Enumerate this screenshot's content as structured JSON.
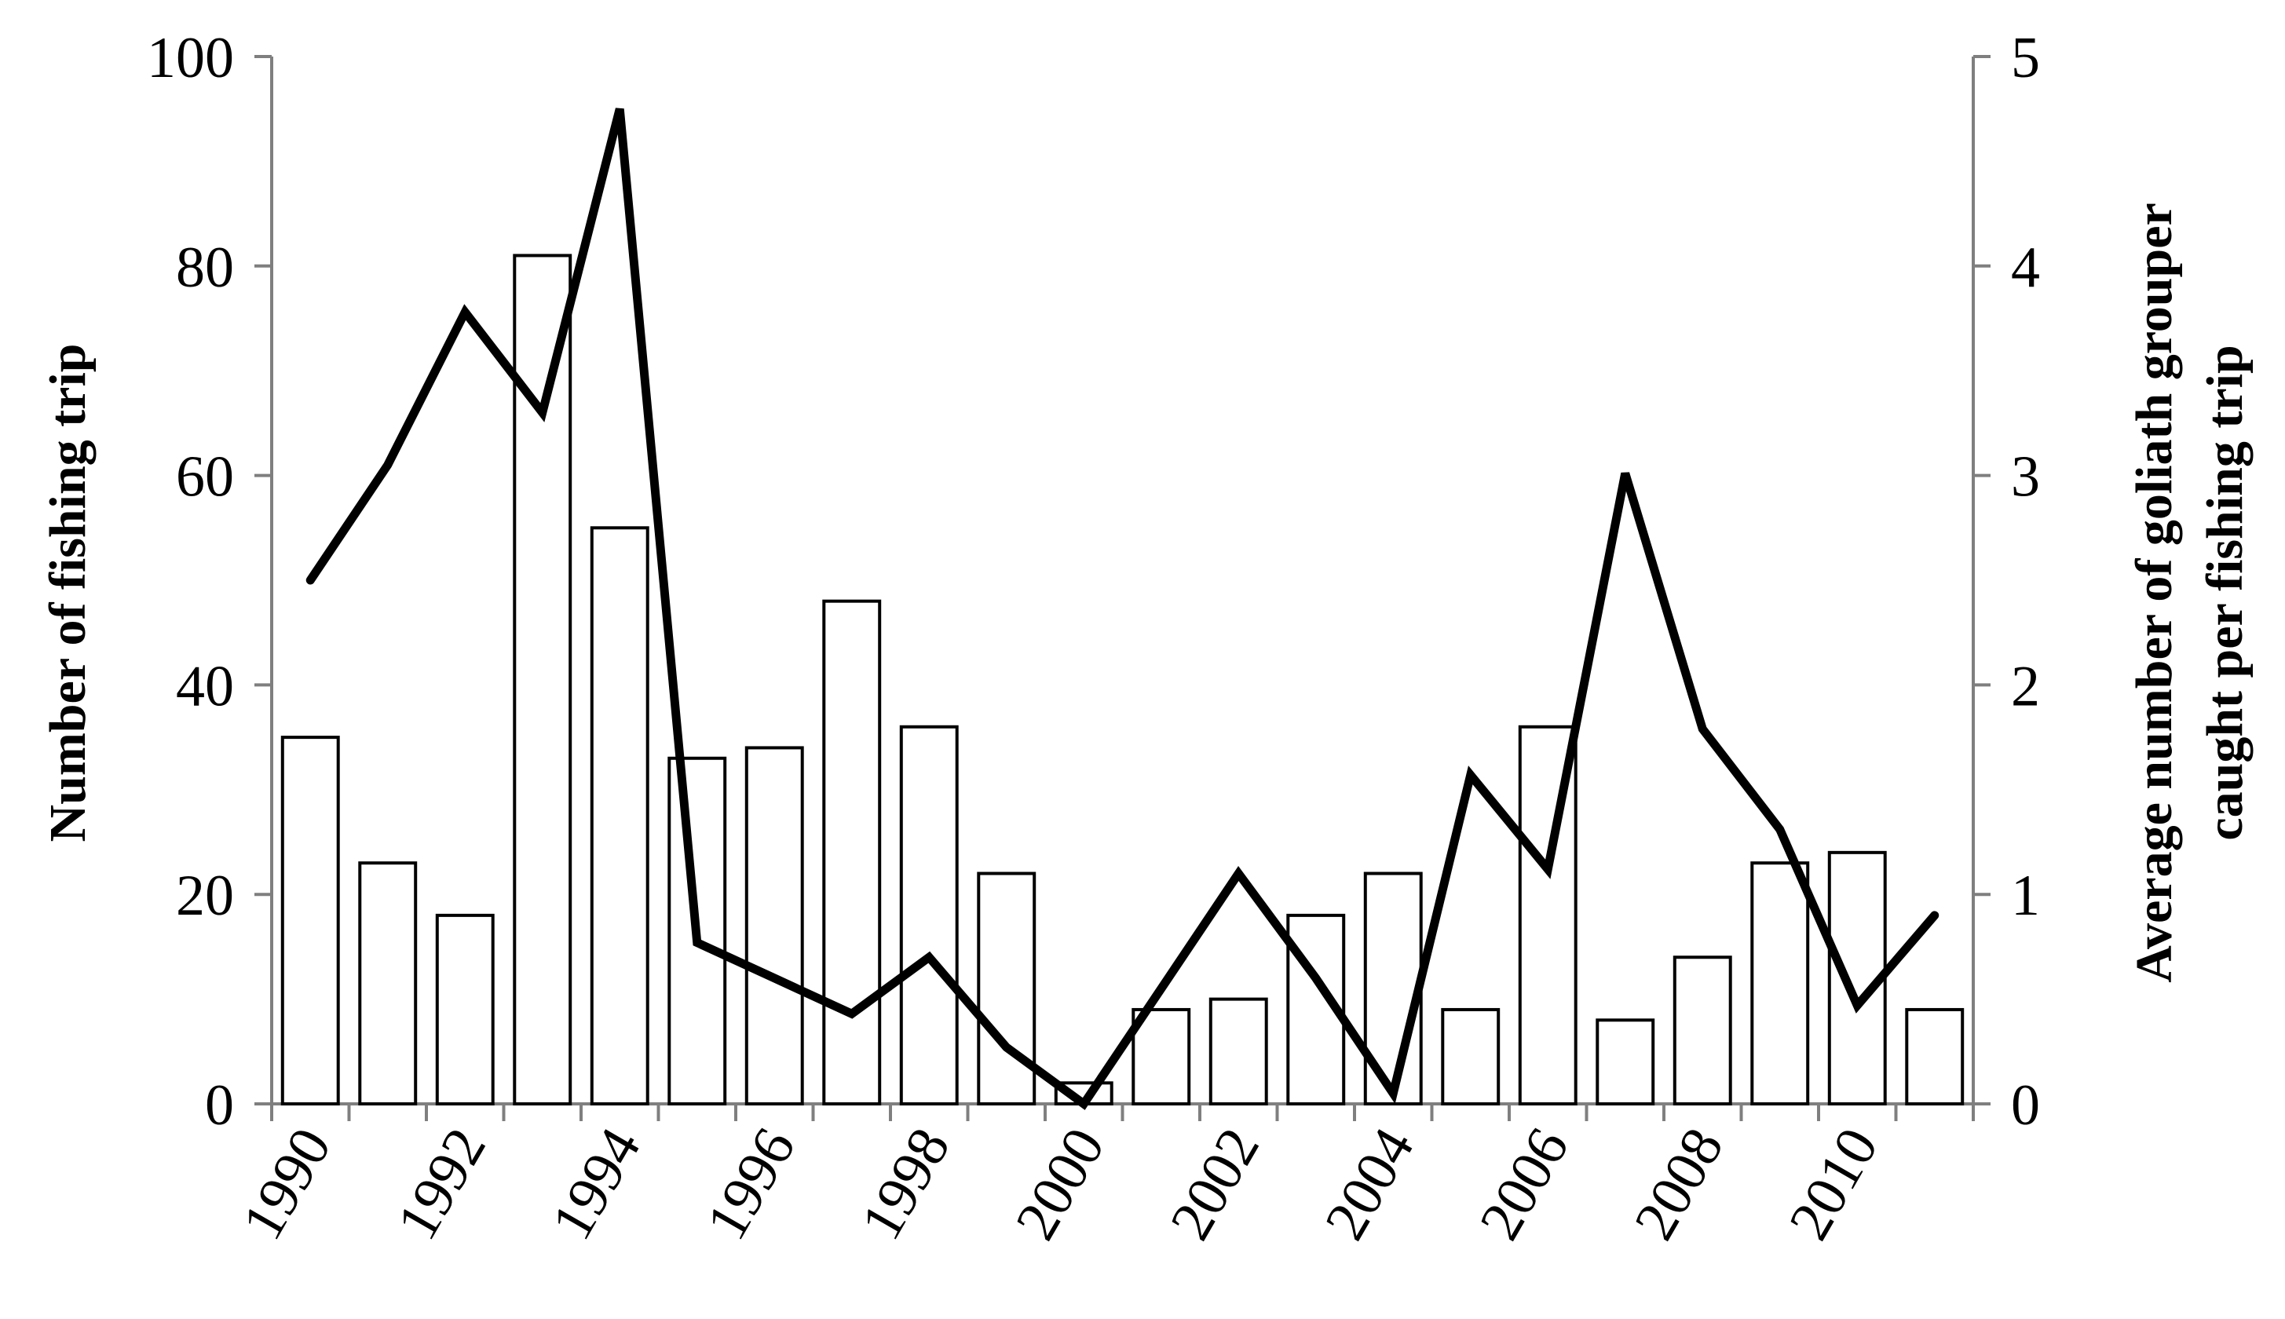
{
  "chart_data": {
    "type": "bar",
    "title": "",
    "categories": [
      "1990",
      "1991",
      "1992",
      "1993",
      "1994",
      "1995",
      "1996",
      "1997",
      "1998",
      "1999",
      "2000",
      "2001",
      "2002",
      "2003",
      "2004",
      "2005",
      "2006",
      "2007",
      "2008",
      "2009",
      "2010",
      "2011"
    ],
    "x_tick_labels": [
      "1990",
      "1992",
      "1994",
      "1996",
      "1998",
      "2000",
      "2002",
      "2004",
      "2006",
      "2008",
      "2010"
    ],
    "xlabel": "",
    "ylabel": "Number of fishing trip",
    "y2label_lines": [
      "Average number of goliath grouper",
      "caught per fishing trip"
    ],
    "ylim": [
      0,
      100
    ],
    "y2lim": [
      0,
      5
    ],
    "y_ticks": [
      0,
      20,
      40,
      60,
      80,
      100
    ],
    "y2_ticks": [
      0,
      1,
      2,
      3,
      4,
      5
    ],
    "grid": false,
    "legend": "none",
    "series": [
      {
        "type": "bar",
        "axis": "left",
        "color": "#ffffff",
        "edge_color": "#000000",
        "values": [
          35,
          23,
          18,
          81,
          55,
          33,
          34,
          48,
          36,
          22,
          2,
          9,
          10,
          18,
          22,
          9,
          36,
          8,
          14,
          23,
          24,
          9
        ]
      },
      {
        "type": "line",
        "axis": "right",
        "color": "#000000",
        "values": [
          2.5,
          3.05,
          3.78,
          3.3,
          4.75,
          0.77,
          0.6,
          0.43,
          0.7,
          0.27,
          0.0,
          0.55,
          1.1,
          0.6,
          0.05,
          1.57,
          1.12,
          3.01,
          1.79,
          1.31,
          0.47,
          0.9
        ]
      }
    ]
  }
}
